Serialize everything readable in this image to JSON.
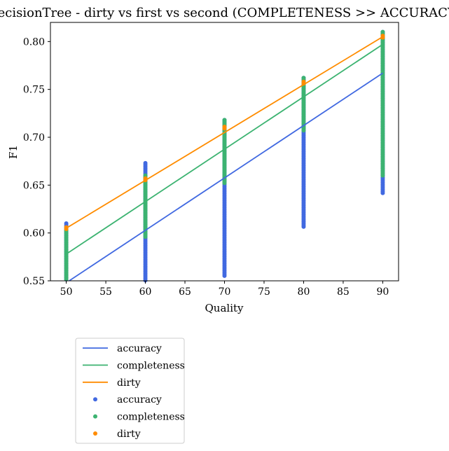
{
  "chart_data": {
    "type": "line",
    "title": "DecisionTree - dirty vs first vs second (COMPLETENESS >> ACCURACY)",
    "xlabel": "Quality",
    "ylabel": "F1",
    "xlim": [
      48,
      92
    ],
    "ylim": [
      0.55,
      0.82
    ],
    "xticks": [
      50,
      55,
      60,
      65,
      70,
      75,
      80,
      85,
      90
    ],
    "yticks": [
      0.55,
      0.6,
      0.65,
      0.7,
      0.75,
      0.8
    ],
    "ytick_labels": [
      "0.55",
      "0.60",
      "0.65",
      "0.70",
      "0.75",
      "0.80"
    ],
    "legend_position": "below",
    "lines": [
      {
        "name": "accuracy",
        "color": "#4169e1",
        "x": [
          50,
          90
        ],
        "y": [
          0.548,
          0.767
        ]
      },
      {
        "name": "completeness",
        "color": "#3cb371",
        "x": [
          50,
          90
        ],
        "y": [
          0.578,
          0.797
        ]
      },
      {
        "name": "dirty",
        "color": "#ff8c00",
        "x": [
          50,
          90
        ],
        "y": [
          0.605,
          0.805
        ]
      }
    ],
    "scatter": [
      {
        "name": "accuracy",
        "color": "#4169e1",
        "x": [
          50,
          60,
          70,
          80,
          90
        ],
        "ymin": [
          0.55,
          0.55,
          0.555,
          0.606,
          0.641
        ],
        "ymax": [
          0.61,
          0.673,
          0.718,
          0.762,
          0.81
        ]
      },
      {
        "name": "completeness",
        "color": "#3cb371",
        "x": [
          50,
          60,
          70,
          80,
          90
        ],
        "ymin": [
          0.55,
          0.595,
          0.652,
          0.706,
          0.66
        ],
        "ymax": [
          0.603,
          0.66,
          0.718,
          0.762,
          0.81
        ]
      },
      {
        "name": "dirty",
        "color": "#ff8c00",
        "x": [
          50,
          60,
          70,
          80,
          90
        ],
        "ymin": [
          0.604,
          0.655,
          0.709,
          0.756,
          0.804
        ],
        "ymax": [
          0.606,
          0.657,
          0.711,
          0.758,
          0.806
        ]
      }
    ],
    "legend": [
      {
        "label": "accuracy",
        "kind": "line",
        "color": "#4169e1"
      },
      {
        "label": "completeness",
        "kind": "line",
        "color": "#3cb371"
      },
      {
        "label": "dirty",
        "kind": "line",
        "color": "#ff8c00"
      },
      {
        "label": "accuracy",
        "kind": "marker",
        "color": "#4169e1"
      },
      {
        "label": "completeness",
        "kind": "marker",
        "color": "#3cb371"
      },
      {
        "label": "dirty",
        "kind": "marker",
        "color": "#ff8c00"
      }
    ]
  }
}
